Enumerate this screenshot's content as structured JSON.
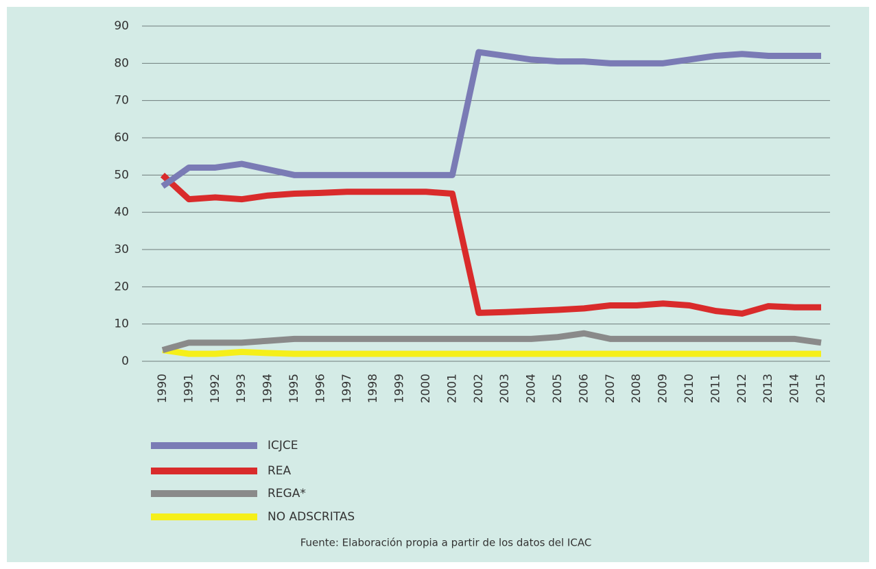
{
  "chart_data": {
    "type": "line",
    "categories": [
      "1990",
      "1991",
      "1992",
      "1993",
      "1994",
      "1995",
      "1996",
      "1997",
      "1998",
      "1999",
      "2000",
      "2001",
      "2002",
      "2003",
      "2004",
      "2005",
      "2006",
      "2007",
      "2008",
      "2009",
      "2010",
      "2011",
      "2012",
      "2013",
      "2014",
      "2015"
    ],
    "series": [
      {
        "name": "ICJCE",
        "color": "#7a7bb5",
        "values": [
          47,
          52,
          52,
          53,
          51.5,
          50,
          50,
          50,
          50,
          50,
          50,
          50,
          83,
          82,
          81,
          80.5,
          80.5,
          80,
          80,
          80,
          81,
          82,
          82.5,
          82,
          82,
          82
        ]
      },
      {
        "name": "REA",
        "color": "#d92b2b",
        "values": [
          50,
          43.5,
          44,
          43.5,
          44.5,
          45,
          45.2,
          45.5,
          45.5,
          45.5,
          45.5,
          45,
          13,
          13.2,
          13.5,
          13.8,
          14.2,
          15,
          15,
          15.5,
          15,
          13.5,
          12.8,
          14.8,
          14.5,
          14.5
        ]
      },
      {
        "name": "REGA*",
        "color": "#8a8a8a",
        "values": [
          3,
          5,
          5,
          5,
          5.5,
          6,
          6,
          6,
          6,
          6,
          6,
          6,
          6,
          6,
          6,
          6.5,
          7.5,
          6,
          6,
          6,
          6,
          6,
          6,
          6,
          6,
          5
        ]
      },
      {
        "name": "NO ADSCRITAS",
        "color": "#f5ef1a",
        "values": [
          3,
          2,
          2,
          2.5,
          2.2,
          2,
          2,
          2,
          2,
          2,
          2,
          2,
          2,
          2,
          2,
          2,
          2,
          2,
          2,
          2,
          2,
          2,
          2,
          2,
          2,
          2
        ]
      }
    ],
    "ylim": [
      0,
      90
    ],
    "yticks": [
      0,
      10,
      20,
      30,
      40,
      50,
      60,
      70,
      80,
      90
    ],
    "grid": true,
    "source": "Fuente: Elaboración propia a partir de los datos del ICAC"
  }
}
